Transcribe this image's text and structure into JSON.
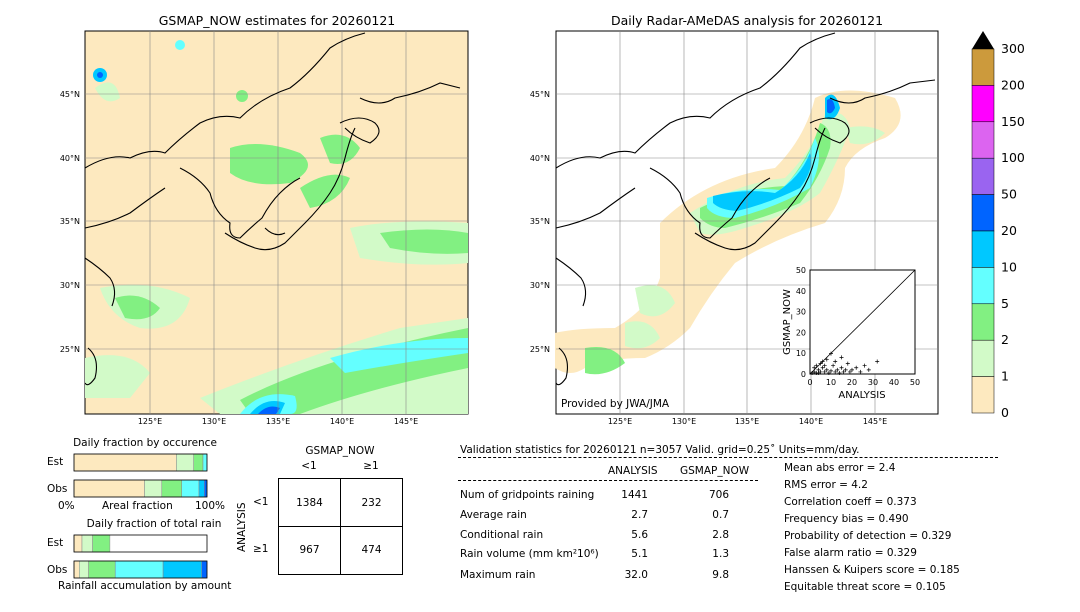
{
  "left_map": {
    "title": "GSMAP_NOW estimates for 20260121",
    "lon_labels": [
      "125°E",
      "130°E",
      "135°E",
      "140°E",
      "145°E"
    ],
    "lat_labels": [
      "45°N",
      "40°N",
      "35°N",
      "30°N",
      "25°N"
    ]
  },
  "right_map": {
    "title": "Daily Radar-AMeDAS analysis for 20260121",
    "lon_labels": [
      "125°E",
      "130°E",
      "135°E",
      "140°E",
      "145°E"
    ],
    "lat_labels": [
      "45°N",
      "40°N",
      "35°N",
      "30°N",
      "25°N"
    ],
    "credit": "Provided by JWA/JMA"
  },
  "colorbar": {
    "labels": [
      "300",
      "200",
      "150",
      "100",
      "50",
      "20",
      "10",
      "5",
      "2",
      "1",
      "0"
    ],
    "colors": [
      "#cc9a3c",
      "#ff00ff",
      "#dc64f0",
      "#9a64f0",
      "#0064ff",
      "#00c8ff",
      "#64ffff",
      "#82f082",
      "#d2fac8",
      "#fde9bf"
    ]
  },
  "occurrence": {
    "title": "Daily fraction by occurence",
    "row_labels": [
      "Est",
      "Obs"
    ],
    "axis_left": "0%",
    "axis_mid": "Areal fraction",
    "axis_right": "100%"
  },
  "rainfall": {
    "title": "Daily fraction of total rain",
    "row_labels": [
      "Est",
      "Obs"
    ],
    "axis_label": "Rainfall accumulation by amount"
  },
  "contingency": {
    "header": "GSMAP_NOW",
    "col_labels": [
      "<1",
      "≥1"
    ],
    "row_axis": "ANALYSIS",
    "row_labels": [
      "<1",
      "≥1"
    ],
    "cells": [
      [
        "1384",
        "232"
      ],
      [
        "967",
        "474"
      ]
    ]
  },
  "validation": {
    "header": "Validation statistics for 20260121  n=3057 Valid. grid=0.25˚ Units=mm/day.",
    "col_analysis": "ANALYSIS",
    "col_gsmap": "GSMAP_NOW",
    "rows": [
      {
        "label": "Num of gridpoints raining",
        "analysis": "1441",
        "gsmap": "706"
      },
      {
        "label": "Average rain",
        "analysis": "2.7",
        "gsmap": "0.7"
      },
      {
        "label": "Conditional rain",
        "analysis": "5.6",
        "gsmap": "2.8"
      },
      {
        "label": "Rain volume (mm km²10⁶)",
        "analysis": "5.1",
        "gsmap": "1.3"
      },
      {
        "label": "Maximum rain",
        "analysis": "32.0",
        "gsmap": "9.8"
      }
    ],
    "scores": [
      "Mean abs error =    2.4",
      "RMS error =    4.2",
      "Correlation coeff =  0.373",
      "Frequency bias =  0.490",
      "Probability of detection =  0.329",
      "False alarm ratio =  0.329",
      "Hanssen & Kuipers score =  0.185",
      "Equitable threat score =  0.105"
    ]
  },
  "chart_data": [
    {
      "type": "scatter",
      "title": "",
      "xlabel": "ANALYSIS",
      "ylabel": "GSMAP_NOW",
      "xlim": [
        0,
        50
      ],
      "ylim": [
        0,
        50
      ],
      "xticks": [
        "0",
        "10",
        "20",
        "30",
        "40",
        "50"
      ],
      "yticks": [
        "0",
        "10",
        "20",
        "30",
        "40",
        "50"
      ],
      "points": [
        [
          1,
          0.5
        ],
        [
          2,
          1
        ],
        [
          3,
          0.5
        ],
        [
          4,
          2
        ],
        [
          5,
          1
        ],
        [
          6,
          3
        ],
        [
          7,
          1
        ],
        [
          8,
          2
        ],
        [
          9,
          0.5
        ],
        [
          10,
          1.5
        ],
        [
          11,
          4
        ],
        [
          12,
          1
        ],
        [
          13,
          2
        ],
        [
          14,
          0.5
        ],
        [
          15,
          3
        ],
        [
          16,
          1
        ],
        [
          17,
          2
        ],
        [
          18,
          5
        ],
        [
          19,
          1
        ],
        [
          20,
          2
        ],
        [
          22,
          3
        ],
        [
          24,
          1
        ],
        [
          26,
          4
        ],
        [
          28,
          2
        ],
        [
          32,
          6
        ],
        [
          3,
          4
        ],
        [
          5,
          5
        ],
        [
          8,
          7
        ],
        [
          12,
          6
        ],
        [
          15,
          8
        ],
        [
          10,
          9.8
        ],
        [
          6,
          6
        ],
        [
          2,
          3
        ],
        [
          4,
          0.5
        ],
        [
          7,
          4
        ]
      ]
    },
    {
      "type": "bar",
      "title": "Daily fraction by occurence",
      "stacked": true,
      "categories": [
        "Est",
        "Obs"
      ],
      "series": [
        {
          "color": "#fde9bf",
          "values": [
            0.77,
            0.53
          ]
        },
        {
          "color": "#d2fac8",
          "values": [
            0.13,
            0.13
          ]
        },
        {
          "color": "#82f082",
          "values": [
            0.07,
            0.15
          ]
        },
        {
          "color": "#64ffff",
          "values": [
            0.03,
            0.13
          ]
        },
        {
          "color": "#00c8ff",
          "values": [
            0.0,
            0.04
          ]
        },
        {
          "color": "#0064ff",
          "values": [
            0.0,
            0.02
          ]
        }
      ]
    },
    {
      "type": "bar",
      "title": "Daily fraction of total rain",
      "stacked": true,
      "categories": [
        "Est",
        "Obs"
      ],
      "series": [
        {
          "color": "#fde9bf",
          "values": [
            0.06,
            0.04
          ]
        },
        {
          "color": "#d2fac8",
          "values": [
            0.08,
            0.07
          ]
        },
        {
          "color": "#82f082",
          "values": [
            0.13,
            0.2
          ]
        },
        {
          "color": "#64ffff",
          "values": [
            0.0,
            0.36
          ]
        },
        {
          "color": "#00c8ff",
          "values": [
            0.0,
            0.29
          ]
        },
        {
          "color": "#0064ff",
          "values": [
            0.0,
            0.04
          ]
        }
      ]
    }
  ]
}
